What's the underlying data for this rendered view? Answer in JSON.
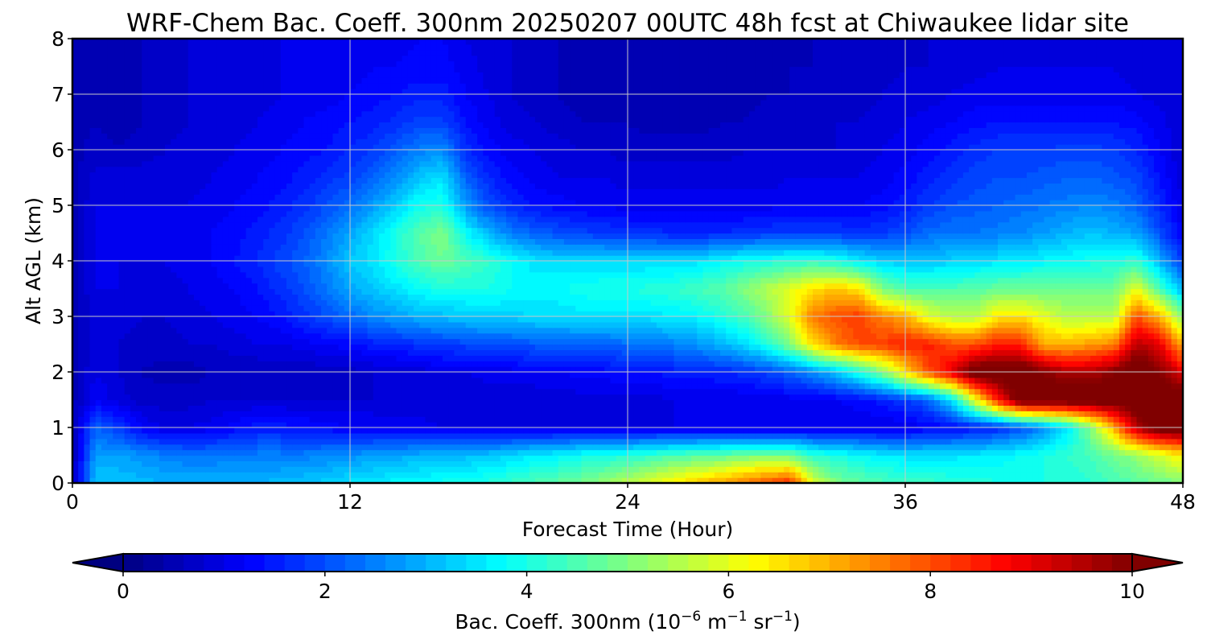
{
  "chart_data": {
    "type": "heatmap",
    "title": "WRF-Chem Bac. Coeff. 300nm  20250207 00UTC 48h fcst at Chiwaukee lidar site",
    "xlabel": "Forecast Time (Hour)",
    "ylabel": "Alt AGL (km)",
    "xlim": [
      0,
      48
    ],
    "ylim": [
      0,
      8
    ],
    "x_ticks": [
      "0",
      "12",
      "24",
      "36",
      "48"
    ],
    "y_ticks": [
      "0",
      "1",
      "2",
      "3",
      "4",
      "5",
      "6",
      "7",
      "8"
    ],
    "grid": true,
    "colormap": "jet",
    "colorbar": {
      "label_main": "Bac. Coeff. 300nm  (10",
      "label_exp1": "−6",
      "label_mid": " m",
      "label_exp2": "−1",
      "label_mid2": " sr",
      "label_exp3": "−1",
      "label_end": ")",
      "range": [
        0,
        10
      ],
      "ticks": [
        "0",
        "2",
        "4",
        "6",
        "8",
        "10"
      ],
      "extend": "both"
    },
    "x_hours": [
      0,
      1,
      2,
      3,
      4,
      5,
      6,
      7,
      8,
      9,
      10,
      11,
      12,
      13,
      14,
      15,
      16,
      17,
      18,
      19,
      20,
      21,
      22,
      23,
      24,
      25,
      26,
      27,
      28,
      29,
      30,
      31,
      32,
      33,
      34,
      35,
      36,
      37,
      38,
      39,
      40,
      41,
      42,
      43,
      44,
      45,
      46,
      47,
      48
    ],
    "y_levels_km": [
      0.0,
      0.5,
      1.0,
      1.5,
      2.0,
      2.5,
      3.0,
      3.5,
      4.0,
      4.5,
      5.0,
      5.5,
      6.0,
      6.5,
      7.0,
      7.5,
      8.0
    ],
    "values": [
      [
        0.5,
        3.2,
        3.2,
        3.1,
        3.0,
        3.0,
        3.0,
        3.0,
        3.0,
        3.1,
        3.2,
        3.3,
        3.5,
        3.6,
        3.7,
        3.8,
        3.9,
        4.0,
        4.1,
        4.3,
        4.5,
        4.7,
        4.9,
        5.2,
        5.6,
        6.0,
        6.4,
        6.8,
        7.2,
        7.6,
        8.0,
        8.4,
        6.0,
        5.0,
        4.7,
        4.5,
        4.4,
        4.3,
        4.2,
        4.1,
        4.0,
        4.0,
        4.0,
        4.0,
        4.2,
        4.4,
        4.6,
        4.8,
        5.0
      ],
      [
        0.5,
        2.8,
        2.8,
        2.7,
        2.5,
        2.4,
        2.4,
        2.5,
        2.5,
        2.5,
        2.5,
        2.6,
        2.7,
        2.8,
        2.9,
        3.0,
        3.0,
        3.1,
        3.2,
        3.4,
        3.6,
        3.7,
        3.9,
        4.0,
        4.1,
        4.3,
        4.5,
        4.6,
        4.7,
        4.9,
        5.0,
        4.9,
        4.2,
        4.0,
        3.8,
        3.6,
        3.5,
        3.5,
        3.5,
        3.6,
        3.7,
        3.8,
        4.0,
        4.2,
        4.4,
        4.8,
        5.2,
        5.8,
        6.4
      ],
      [
        0.5,
        2.2,
        1.8,
        1.2,
        1.0,
        1.0,
        1.1,
        1.3,
        1.5,
        1.5,
        1.4,
        1.3,
        1.2,
        1.2,
        1.1,
        1.1,
        1.0,
        1.0,
        1.0,
        1.0,
        1.0,
        1.0,
        1.0,
        1.0,
        1.0,
        1.0,
        1.0,
        1.0,
        1.0,
        1.0,
        1.0,
        1.0,
        1.0,
        1.0,
        1.0,
        1.0,
        1.0,
        1.2,
        1.3,
        1.4,
        1.6,
        2.0,
        2.6,
        3.5,
        5.0,
        7.0,
        9.5,
        10.5,
        10.5
      ],
      [
        0.5,
        1.2,
        0.9,
        0.7,
        0.7,
        0.7,
        0.8,
        0.8,
        0.8,
        0.8,
        0.8,
        0.8,
        0.8,
        0.8,
        0.8,
        0.8,
        0.8,
        0.8,
        0.8,
        0.8,
        0.8,
        0.8,
        0.9,
        0.9,
        0.9,
        0.9,
        1.0,
        1.0,
        1.0,
        1.0,
        1.0,
        1.1,
        1.1,
        1.2,
        1.3,
        1.5,
        1.8,
        2.2,
        3.5,
        6.0,
        8.5,
        10.5,
        10.5,
        10.5,
        10.5,
        10.5,
        10.5,
        10.5,
        10.5
      ],
      [
        0.5,
        1.0,
        0.8,
        0.6,
        0.5,
        0.5,
        0.6,
        0.6,
        0.6,
        0.6,
        0.6,
        0.7,
        0.7,
        0.8,
        0.8,
        0.9,
        1.0,
        1.0,
        1.1,
        1.1,
        1.2,
        1.2,
        1.3,
        1.3,
        1.4,
        1.4,
        1.5,
        1.5,
        1.6,
        1.7,
        1.9,
        2.2,
        2.6,
        3.2,
        4.0,
        5.0,
        6.5,
        8.0,
        9.0,
        10.5,
        10.5,
        10.5,
        10.0,
        9.5,
        9.5,
        10.0,
        10.5,
        10.0,
        9.0
      ],
      [
        0.5,
        0.9,
        0.8,
        0.7,
        0.7,
        0.8,
        0.8,
        0.9,
        1.0,
        1.0,
        1.1,
        1.2,
        1.3,
        1.5,
        1.6,
        1.7,
        1.8,
        1.9,
        2.0,
        2.0,
        2.1,
        2.1,
        2.2,
        2.2,
        2.3,
        2.4,
        2.5,
        2.7,
        3.0,
        3.4,
        4.0,
        5.0,
        6.5,
        7.5,
        8.0,
        8.2,
        8.5,
        8.5,
        8.0,
        8.0,
        8.5,
        8.5,
        7.0,
        7.0,
        7.2,
        7.5,
        9.5,
        9.0,
        7.0
      ],
      [
        0.5,
        0.9,
        0.9,
        0.8,
        0.8,
        0.9,
        1.0,
        1.1,
        1.2,
        1.4,
        1.7,
        2.0,
        2.3,
        2.6,
        2.8,
        3.0,
        3.1,
        3.2,
        3.3,
        3.3,
        3.4,
        3.4,
        3.5,
        3.5,
        3.5,
        3.5,
        3.6,
        3.7,
        4.0,
        4.4,
        5.0,
        6.0,
        7.5,
        8.0,
        8.2,
        7.5,
        7.0,
        6.0,
        5.5,
        5.5,
        6.5,
        6.5,
        6.0,
        5.5,
        5.5,
        5.5,
        8.0,
        7.0,
        5.0
      ],
      [
        0.5,
        1.0,
        1.0,
        0.9,
        0.9,
        1.0,
        1.1,
        1.2,
        1.4,
        1.7,
        2.0,
        2.4,
        2.9,
        3.2,
        3.5,
        3.8,
        4.0,
        4.0,
        4.0,
        3.8,
        3.7,
        3.8,
        3.9,
        4.0,
        4.0,
        4.1,
        4.2,
        4.4,
        4.6,
        5.0,
        5.5,
        6.0,
        6.5,
        6.8,
        6.5,
        5.0,
        4.5,
        4.5,
        4.5,
        4.6,
        4.8,
        4.8,
        4.8,
        4.8,
        4.8,
        4.8,
        6.0,
        4.5,
        3.0
      ],
      [
        0.5,
        1.0,
        1.0,
        1.0,
        1.0,
        1.1,
        1.2,
        1.4,
        1.6,
        1.9,
        2.2,
        2.6,
        3.2,
        3.5,
        4.0,
        4.5,
        4.8,
        4.5,
        4.2,
        3.8,
        3.5,
        3.4,
        3.4,
        3.4,
        3.4,
        3.4,
        3.4,
        3.5,
        3.7,
        3.9,
        4.0,
        4.1,
        4.2,
        4.0,
        3.6,
        3.3,
        3.2,
        3.2,
        3.3,
        3.4,
        3.5,
        3.6,
        3.7,
        3.8,
        3.9,
        4.0,
        4.2,
        3.0,
        1.8
      ],
      [
        0.5,
        1.0,
        1.0,
        1.0,
        1.0,
        1.1,
        1.2,
        1.3,
        1.5,
        1.7,
        2.0,
        2.4,
        2.9,
        3.4,
        4.0,
        4.6,
        5.0,
        3.8,
        3.0,
        2.5,
        2.2,
        2.0,
        1.9,
        1.8,
        1.7,
        1.7,
        1.6,
        1.6,
        1.6,
        1.7,
        1.8,
        1.8,
        1.8,
        1.8,
        1.7,
        1.8,
        2.0,
        2.3,
        2.4,
        2.4,
        2.5,
        2.6,
        2.8,
        3.0,
        3.2,
        3.0,
        2.8,
        2.0,
        1.2
      ],
      [
        0.5,
        1.0,
        1.0,
        1.0,
        1.0,
        1.0,
        1.1,
        1.2,
        1.3,
        1.5,
        1.7,
        2.0,
        2.3,
        2.8,
        3.3,
        3.9,
        4.0,
        2.8,
        2.0,
        1.6,
        1.4,
        1.3,
        1.2,
        1.2,
        1.1,
        1.1,
        1.1,
        1.1,
        1.1,
        1.1,
        1.1,
        1.2,
        1.2,
        1.2,
        1.2,
        1.3,
        1.5,
        1.8,
        2.0,
        2.1,
        2.2,
        2.3,
        2.4,
        2.5,
        2.6,
        2.5,
        2.2,
        1.6,
        1.0
      ],
      [
        0.5,
        0.9,
        0.9,
        0.9,
        0.9,
        0.9,
        1.0,
        1.1,
        1.2,
        1.3,
        1.5,
        1.7,
        1.9,
        2.2,
        2.6,
        3.2,
        3.5,
        2.2,
        1.6,
        1.3,
        1.1,
        1.0,
        1.0,
        1.0,
        0.9,
        0.9,
        0.9,
        0.9,
        0.9,
        0.9,
        0.9,
        1.0,
        1.0,
        1.0,
        1.0,
        1.1,
        1.3,
        1.5,
        1.7,
        1.9,
        2.0,
        2.0,
        2.1,
        2.2,
        2.2,
        2.1,
        1.9,
        1.4,
        0.9
      ],
      [
        0.5,
        0.7,
        0.6,
        0.7,
        0.8,
        0.9,
        0.9,
        1.0,
        1.1,
        1.2,
        1.3,
        1.4,
        1.6,
        1.8,
        2.1,
        2.5,
        2.6,
        1.7,
        1.3,
        1.1,
        1.0,
        0.9,
        0.8,
        0.8,
        0.7,
        0.7,
        0.7,
        0.7,
        0.7,
        0.8,
        0.8,
        0.8,
        0.8,
        0.8,
        0.9,
        1.0,
        1.1,
        1.3,
        1.5,
        1.7,
        1.8,
        1.8,
        1.8,
        1.9,
        1.9,
        1.8,
        1.6,
        1.2,
        0.8
      ],
      [
        0.5,
        0.6,
        0.5,
        0.6,
        0.7,
        0.8,
        0.9,
        0.9,
        1.0,
        1.1,
        1.2,
        1.3,
        1.4,
        1.5,
        1.7,
        1.9,
        1.9,
        1.4,
        1.1,
        0.9,
        0.8,
        0.7,
        0.6,
        0.6,
        0.6,
        0.5,
        0.5,
        0.5,
        0.6,
        0.6,
        0.7,
        0.7,
        0.7,
        0.8,
        0.8,
        0.9,
        1.0,
        1.1,
        1.2,
        1.3,
        1.4,
        1.4,
        1.4,
        1.4,
        1.4,
        1.4,
        1.3,
        1.1,
        0.8
      ],
      [
        0.5,
        0.5,
        0.5,
        0.6,
        0.7,
        0.8,
        0.8,
        0.9,
        0.9,
        1.0,
        1.1,
        1.1,
        1.2,
        1.3,
        1.4,
        1.5,
        1.5,
        1.2,
        1.0,
        0.8,
        0.7,
        0.6,
        0.5,
        0.5,
        0.5,
        0.4,
        0.4,
        0.4,
        0.5,
        0.5,
        0.6,
        0.6,
        0.6,
        0.7,
        0.7,
        0.8,
        0.9,
        0.9,
        1.0,
        1.1,
        1.1,
        1.1,
        1.1,
        1.1,
        1.1,
        1.1,
        1.0,
        0.9,
        0.8
      ],
      [
        0.5,
        0.5,
        0.5,
        0.6,
        0.7,
        0.8,
        0.8,
        0.9,
        0.9,
        1.0,
        1.0,
        1.1,
        1.1,
        1.2,
        1.2,
        1.3,
        1.3,
        1.1,
        0.9,
        0.8,
        0.7,
        0.6,
        0.5,
        0.5,
        0.4,
        0.4,
        0.4,
        0.4,
        0.4,
        0.5,
        0.5,
        0.6,
        0.6,
        0.6,
        0.7,
        0.7,
        0.8,
        0.8,
        0.9,
        0.9,
        1.0,
        1.0,
        1.0,
        1.0,
        1.0,
        1.0,
        0.9,
        0.9,
        0.8
      ],
      [
        0.5,
        0.5,
        0.5,
        0.6,
        0.7,
        0.8,
        0.8,
        0.9,
        0.9,
        1.0,
        1.0,
        1.0,
        1.1,
        1.1,
        1.1,
        1.2,
        1.2,
        1.0,
        0.9,
        0.8,
        0.7,
        0.6,
        0.5,
        0.5,
        0.4,
        0.4,
        0.4,
        0.4,
        0.4,
        0.5,
        0.5,
        0.5,
        0.6,
        0.6,
        0.6,
        0.7,
        0.7,
        0.8,
        0.8,
        0.9,
        0.9,
        0.9,
        0.9,
        0.9,
        0.9,
        0.9,
        0.9,
        0.8,
        0.8
      ]
    ]
  }
}
